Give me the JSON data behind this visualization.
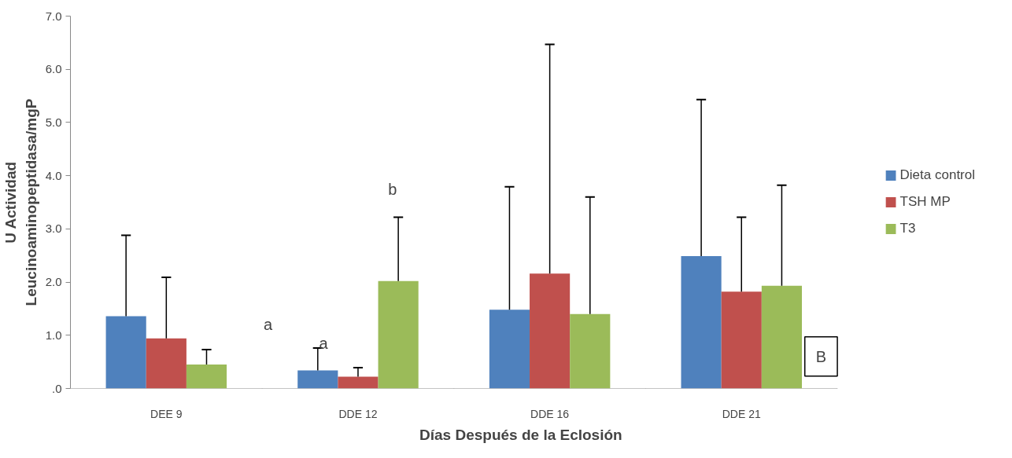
{
  "chart_data": {
    "type": "bar",
    "xlabel": "Días Después  de la Eclosión",
    "ylabel": "U Actividad\nLeucinoaminopeptidasa/mgP",
    "categories": [
      "DEE 9",
      "DDE 12",
      "DDE 16",
      "DDE 21"
    ],
    "series": [
      {
        "name": "Dieta control",
        "color": "#4f81bd",
        "values": [
          1.36,
          0.34,
          1.48,
          2.49
        ],
        "errors": [
          [
            1.36,
            2.88
          ],
          [
            0.34,
            0.76
          ],
          [
            1.48,
            3.79
          ],
          [
            2.49,
            5.43
          ]
        ]
      },
      {
        "name": "TSH MP",
        "color": "#c0504d",
        "values": [
          0.94,
          0.22,
          2.16,
          1.82
        ],
        "errors": [
          [
            0.94,
            2.09
          ],
          [
            0.22,
            0.39
          ],
          [
            2.16,
            6.47
          ],
          [
            1.82,
            3.22
          ]
        ]
      },
      {
        "name": "T3",
        "color": "#9bbb59",
        "values": [
          0.45,
          2.02,
          1.4,
          1.93
        ],
        "errors": [
          [
            0.45,
            0.73
          ],
          [
            2.02,
            3.22
          ],
          [
            1.4,
            3.6
          ],
          [
            1.93,
            3.82
          ]
        ]
      }
    ],
    "ylim": [
      0,
      7
    ],
    "yticks": [
      {
        "value": 0,
        "label": ".0"
      },
      {
        "value": 1,
        "label": "1.0"
      },
      {
        "value": 2,
        "label": "2.0"
      },
      {
        "value": 3,
        "label": "3.0"
      },
      {
        "value": 4,
        "label": "4.0"
      },
      {
        "value": 5,
        "label": "5.0"
      },
      {
        "value": 6,
        "label": "6.0"
      },
      {
        "value": 7,
        "label": "7.0"
      }
    ],
    "annotations": [
      "a",
      "a",
      "b",
      "B"
    ],
    "grid": false,
    "legend": "right"
  }
}
